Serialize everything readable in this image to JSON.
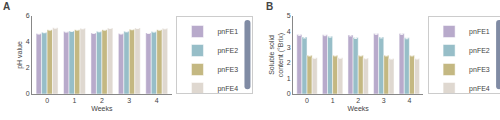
{
  "chart_data": [
    {
      "type": "bar",
      "title": "A",
      "xlabel": "Weeks",
      "ylabel": "pH value",
      "x": [
        0,
        1,
        2,
        3,
        4
      ],
      "xlim": [
        -0.55,
        4.55
      ],
      "xticks": [
        0,
        1,
        2,
        3,
        4
      ],
      "ylim": [
        0,
        6
      ],
      "yticks": [
        0,
        2,
        4,
        6
      ],
      "grid": false,
      "legend": "right",
      "series": [
        {
          "name": "pnFE1",
          "color": "#b8aacb",
          "values": [
            4.65,
            4.8,
            4.7,
            4.65,
            4.7
          ],
          "errors": [
            0.04,
            0.04,
            0.04,
            0.04,
            0.04
          ]
        },
        {
          "name": "pnFE2",
          "color": "#97bec8",
          "values": [
            4.75,
            4.85,
            4.82,
            4.82,
            4.8
          ],
          "errors": [
            0.04,
            0.04,
            0.04,
            0.04,
            0.04
          ]
        },
        {
          "name": "pnFE3",
          "color": "#c4b882",
          "values": [
            4.95,
            4.95,
            4.95,
            4.98,
            4.95
          ],
          "errors": [
            0.04,
            0.04,
            0.04,
            0.04,
            0.04
          ]
        },
        {
          "name": "pnFE4",
          "color": "#dfd8d0",
          "values": [
            5.1,
            5.05,
            5.08,
            5.08,
            5.05
          ],
          "errors": [
            0.04,
            0.04,
            0.04,
            0.04,
            0.04
          ]
        }
      ]
    },
    {
      "type": "bar",
      "title": "B",
      "xlabel": "Weeks",
      "ylabel": "Soluble solid content (°Brix)",
      "x": [
        0,
        1,
        2,
        3,
        4
      ],
      "xlim": [
        -0.55,
        4.55
      ],
      "xticks": [
        0,
        1,
        2,
        3,
        4
      ],
      "ylim": [
        0,
        5
      ],
      "yticks": [
        0,
        1,
        2,
        3,
        4,
        5
      ],
      "grid": false,
      "legend": "right",
      "series": [
        {
          "name": "pnFE1",
          "color": "#b8aacb",
          "values": [
            3.82,
            3.8,
            3.78,
            3.88,
            3.88
          ],
          "errors": [
            0.06,
            0.06,
            0.06,
            0.06,
            0.06
          ]
        },
        {
          "name": "pnFE2",
          "color": "#97bec8",
          "values": [
            3.65,
            3.7,
            3.62,
            3.65,
            3.6
          ],
          "errors": [
            0.06,
            0.06,
            0.06,
            0.06,
            0.06
          ]
        },
        {
          "name": "pnFE3",
          "color": "#c4b882",
          "values": [
            2.48,
            2.48,
            2.48,
            2.48,
            2.48
          ],
          "errors": [
            0.04,
            0.04,
            0.04,
            0.04,
            0.04
          ]
        },
        {
          "name": "pnFE4",
          "color": "#dfd8d0",
          "values": [
            2.33,
            2.33,
            2.3,
            2.28,
            2.28
          ],
          "errors": [
            0.04,
            0.04,
            0.04,
            0.04,
            0.04
          ]
        }
      ]
    }
  ]
}
